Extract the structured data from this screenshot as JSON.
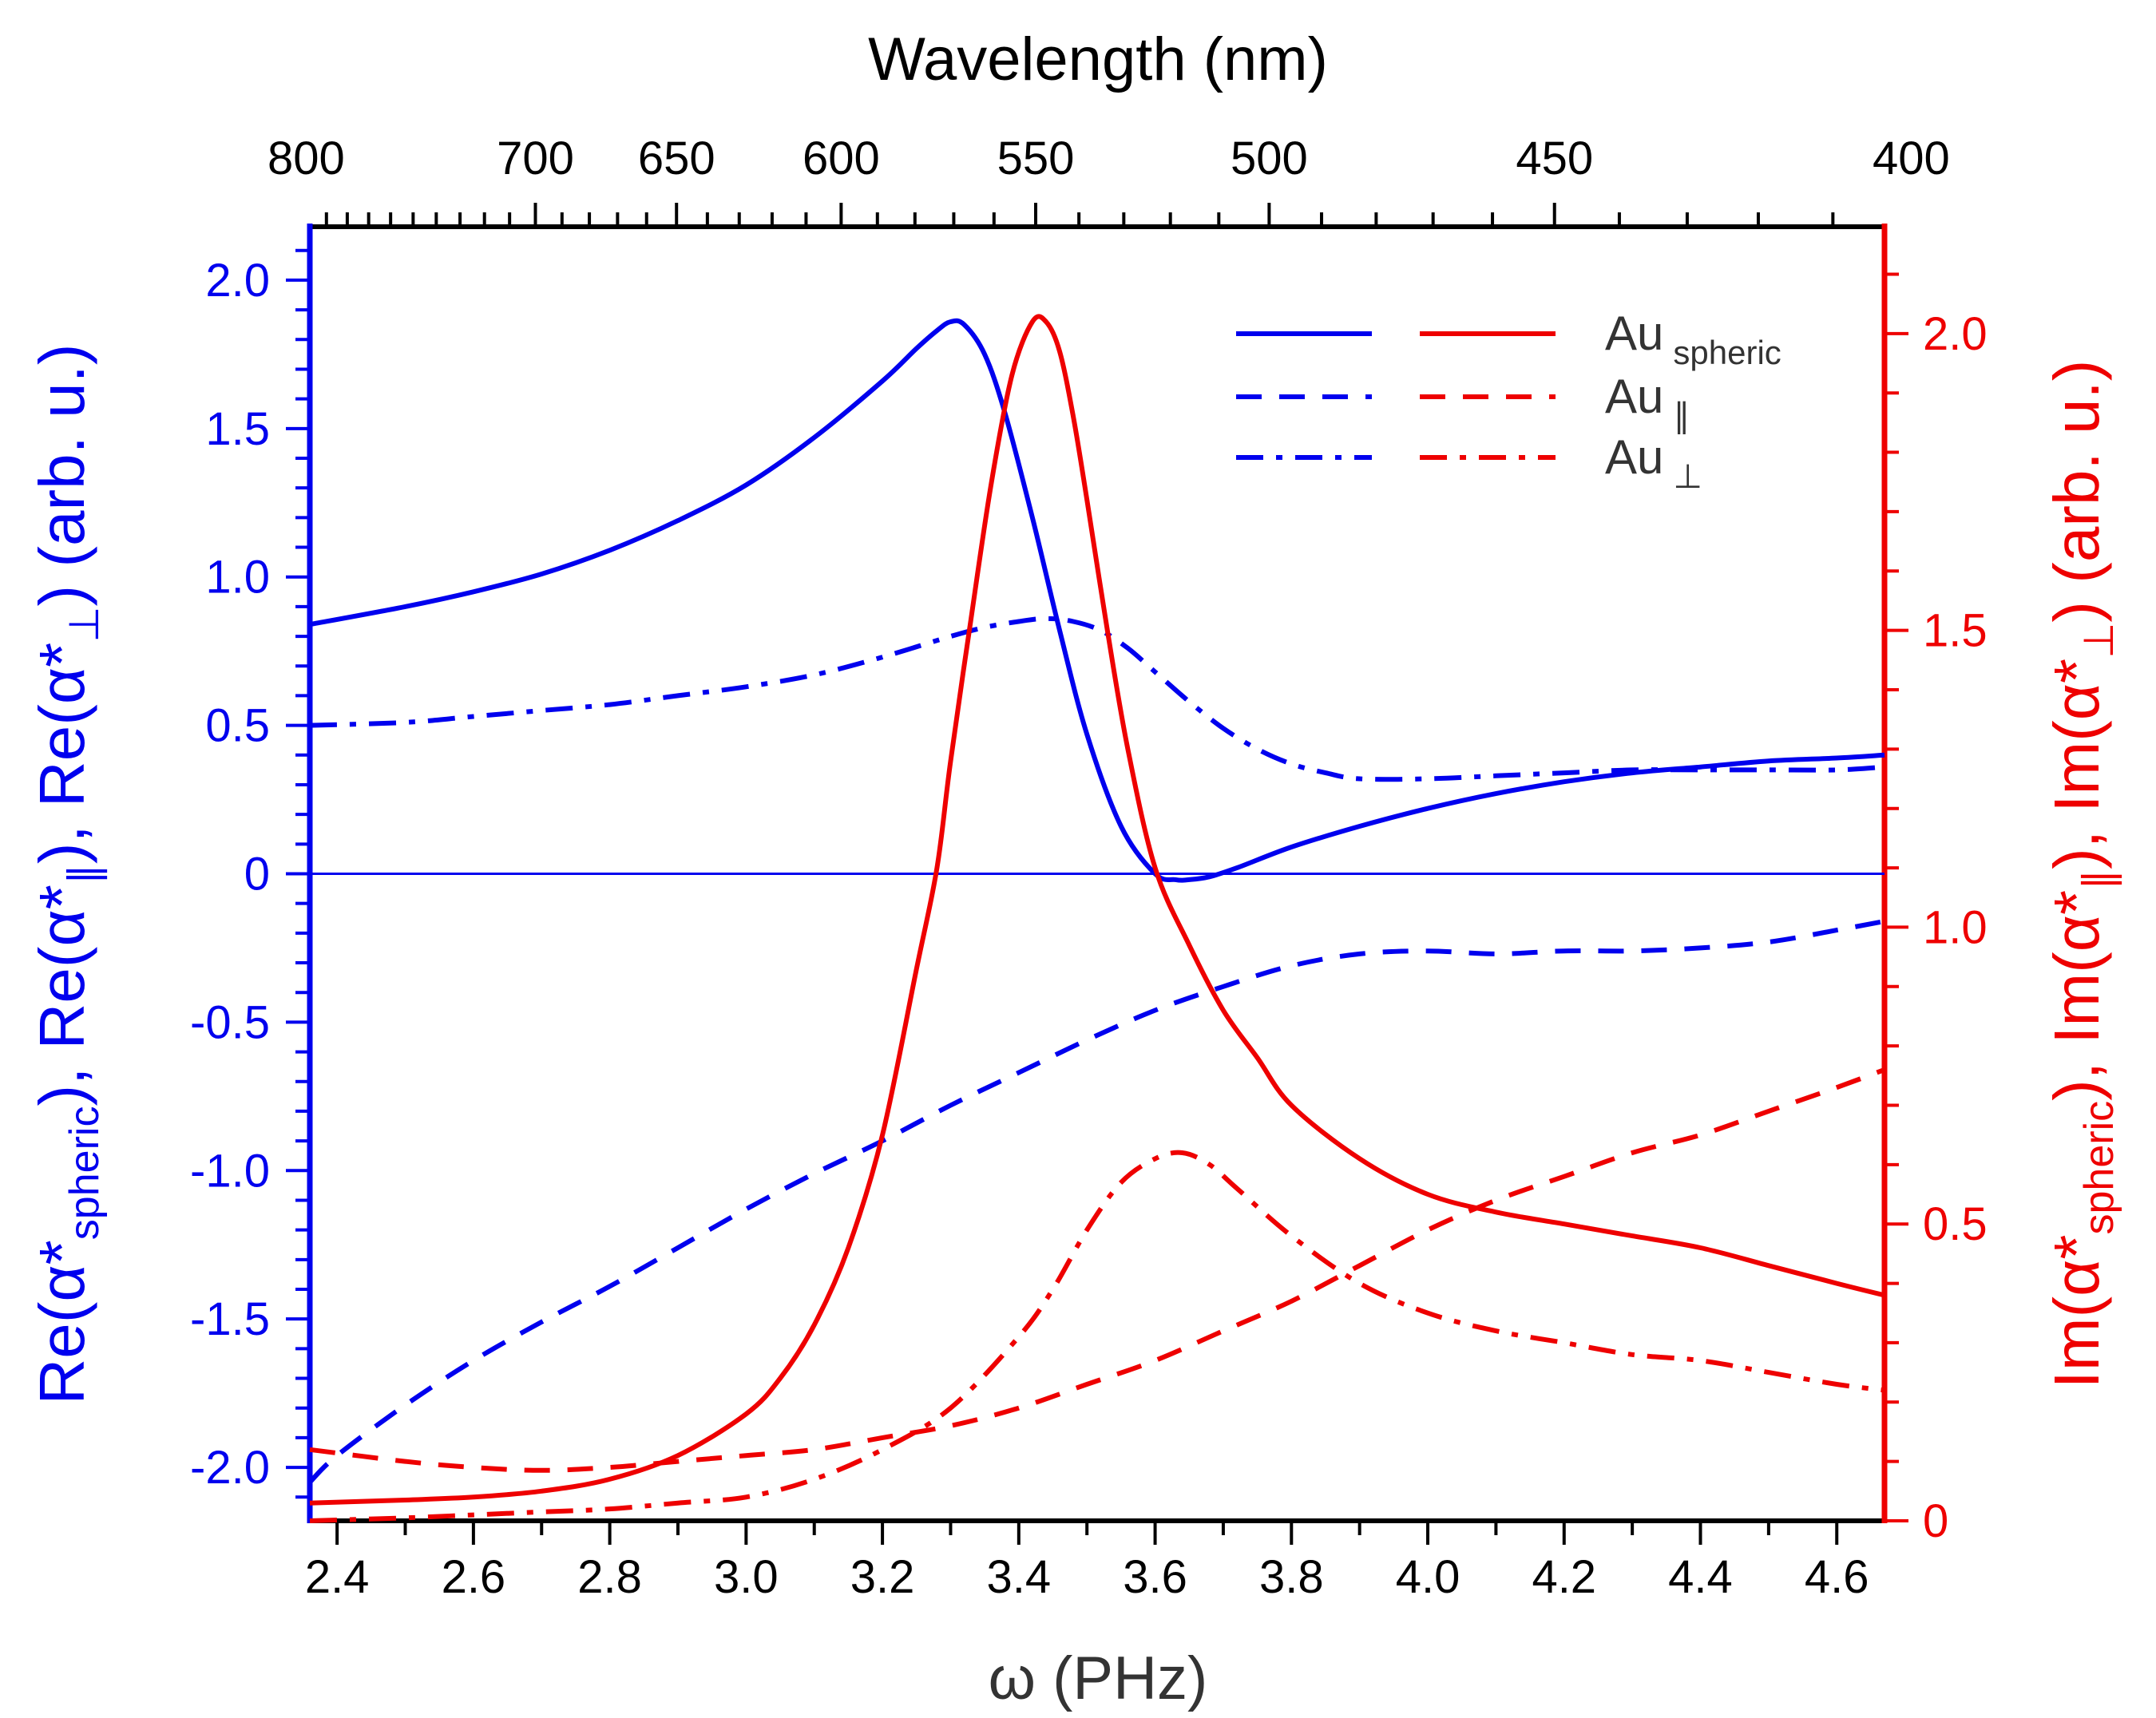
{
  "chart_data": {
    "type": "line",
    "xlabel": "ω (PHz)",
    "xlim": [
      2.36,
      4.67
    ],
    "x_ticks": [
      "2.4",
      "2.6",
      "2.8",
      "3.0",
      "3.2",
      "3.4",
      "3.6",
      "3.8",
      "4.0",
      "4.2",
      "4.4",
      "4.6"
    ],
    "top_xlabel": "Wavelength (nm)",
    "top_ticks": [
      "800",
      "700",
      "650",
      "600",
      "550",
      "500",
      "450",
      "400"
    ],
    "left_ylabel": {
      "main": "Re(α*",
      "sub1": "spheric",
      "mid1": "), Re(α*",
      "sub2": "∥",
      "mid2": "), Re(α*",
      "sub3": "⊥",
      "end": ") (arb. u.)"
    },
    "left_ylim": [
      -2.18,
      2.18
    ],
    "left_ticks": [
      "2.0",
      "1.5",
      "1.0",
      "0.5",
      "0",
      "-0.5",
      "-1.0",
      "-1.5",
      "-2.0"
    ],
    "right_ylabel": {
      "main": "Im(α*",
      "sub1": "spheric",
      "mid1": "), Im(α*",
      "sub2": "∥",
      "mid2": "), Im(α*",
      "sub3": "⊥",
      "end": ") (arb. u.)"
    },
    "right_ylim": [
      0,
      2.18
    ],
    "right_ticks": [
      "2.0",
      "1.5",
      "1.0",
      "0.5",
      "0"
    ],
    "colors": {
      "left": "#0000ee",
      "right": "#ee0000"
    },
    "legend": {
      "placement": "top-right",
      "entries": [
        {
          "label": "Au",
          "sub": "spheric",
          "style": "solid"
        },
        {
          "label": "Au",
          "sub": "∥",
          "style": "dashed"
        },
        {
          "label": "Au",
          "sub": "⊥",
          "style": "dashdot"
        }
      ]
    },
    "series": [
      {
        "name": "Re(α*spheric)",
        "axis": "left",
        "color": "#0000ee",
        "style": "solid",
        "x": [
          2.36,
          2.5,
          2.6,
          2.7,
          2.8,
          2.9,
          3.0,
          3.1,
          3.2,
          3.25,
          3.28,
          3.3,
          3.32,
          3.35,
          3.38,
          3.42,
          3.46,
          3.5,
          3.55,
          3.6,
          3.63,
          3.65,
          3.68,
          3.72,
          3.8,
          3.9,
          4.0,
          4.1,
          4.2,
          4.3,
          4.4,
          4.5,
          4.6,
          4.67
        ],
        "y": [
          0.84,
          0.9,
          0.95,
          1.01,
          1.09,
          1.19,
          1.31,
          1.47,
          1.66,
          1.77,
          1.83,
          1.86,
          1.85,
          1.75,
          1.55,
          1.2,
          0.82,
          0.47,
          0.16,
          0.0,
          -0.02,
          -0.02,
          -0.01,
          0.02,
          0.09,
          0.16,
          0.22,
          0.27,
          0.31,
          0.34,
          0.36,
          0.38,
          0.39,
          0.4
        ]
      },
      {
        "name": "Re(α*∥)",
        "axis": "left",
        "color": "#0000ee",
        "style": "dashed",
        "x": [
          2.36,
          2.4,
          2.5,
          2.6,
          2.7,
          2.8,
          2.9,
          3.0,
          3.1,
          3.2,
          3.3,
          3.4,
          3.5,
          3.6,
          3.7,
          3.8,
          3.9,
          4.0,
          4.1,
          4.2,
          4.3,
          4.4,
          4.5,
          4.6,
          4.67
        ],
        "y": [
          -2.05,
          -1.96,
          -1.79,
          -1.64,
          -1.51,
          -1.39,
          -1.26,
          -1.13,
          -1.01,
          -0.9,
          -0.78,
          -0.67,
          -0.56,
          -0.46,
          -0.38,
          -0.31,
          -0.27,
          -0.26,
          -0.27,
          -0.26,
          -0.26,
          -0.25,
          -0.23,
          -0.19,
          -0.16
        ]
      },
      {
        "name": "Re(α*⊥)",
        "axis": "left",
        "color": "#0000ee",
        "style": "dashdot",
        "x": [
          2.36,
          2.5,
          2.6,
          2.7,
          2.8,
          2.9,
          3.0,
          3.1,
          3.2,
          3.3,
          3.35,
          3.4,
          3.44,
          3.48,
          3.52,
          3.56,
          3.6,
          3.65,
          3.7,
          3.75,
          3.8,
          3.85,
          3.9,
          4.0,
          4.1,
          4.2,
          4.3,
          4.4,
          4.5,
          4.6,
          4.67
        ],
        "y": [
          0.5,
          0.51,
          0.53,
          0.55,
          0.57,
          0.6,
          0.63,
          0.67,
          0.73,
          0.8,
          0.83,
          0.85,
          0.86,
          0.85,
          0.82,
          0.76,
          0.68,
          0.58,
          0.49,
          0.42,
          0.37,
          0.34,
          0.32,
          0.32,
          0.33,
          0.34,
          0.35,
          0.35,
          0.35,
          0.35,
          0.36
        ]
      },
      {
        "name": "Im(α*spheric)",
        "axis": "right",
        "color": "#ee0000",
        "style": "solid",
        "x": [
          2.36,
          2.5,
          2.6,
          2.7,
          2.8,
          2.9,
          3.0,
          3.05,
          3.1,
          3.15,
          3.2,
          3.25,
          3.28,
          3.3,
          3.33,
          3.36,
          3.39,
          3.42,
          3.44,
          3.46,
          3.48,
          3.5,
          3.53,
          3.56,
          3.6,
          3.65,
          3.7,
          3.75,
          3.8,
          3.9,
          4.0,
          4.1,
          4.2,
          4.3,
          4.4,
          4.5,
          4.6,
          4.67
        ],
        "y": [
          0.03,
          0.035,
          0.04,
          0.05,
          0.07,
          0.11,
          0.18,
          0.24,
          0.33,
          0.46,
          0.65,
          0.93,
          1.1,
          1.28,
          1.52,
          1.75,
          1.93,
          2.02,
          2.02,
          1.97,
          1.86,
          1.72,
          1.5,
          1.3,
          1.1,
          0.97,
          0.86,
          0.78,
          0.7,
          0.61,
          0.55,
          0.52,
          0.5,
          0.48,
          0.46,
          0.43,
          0.4,
          0.38
        ]
      },
      {
        "name": "Im(α*∥)",
        "axis": "right",
        "color": "#ee0000",
        "style": "dashed",
        "x": [
          2.36,
          2.5,
          2.6,
          2.7,
          2.8,
          2.9,
          3.0,
          3.1,
          3.2,
          3.3,
          3.4,
          3.5,
          3.6,
          3.7,
          3.8,
          3.9,
          4.0,
          4.1,
          4.2,
          4.3,
          4.4,
          4.5,
          4.6,
          4.67
        ],
        "y": [
          0.12,
          0.1,
          0.09,
          0.085,
          0.09,
          0.1,
          0.11,
          0.12,
          0.14,
          0.16,
          0.19,
          0.23,
          0.27,
          0.32,
          0.37,
          0.43,
          0.49,
          0.54,
          0.58,
          0.62,
          0.65,
          0.69,
          0.73,
          0.76
        ]
      },
      {
        "name": "Im(α*⊥)",
        "axis": "right",
        "color": "#ee0000",
        "style": "dashdot",
        "x": [
          2.36,
          2.5,
          2.6,
          2.7,
          2.8,
          2.9,
          3.0,
          3.1,
          3.2,
          3.3,
          3.4,
          3.45,
          3.5,
          3.55,
          3.6,
          3.64,
          3.68,
          3.72,
          3.8,
          3.9,
          4.0,
          4.1,
          4.2,
          4.3,
          4.4,
          4.5,
          4.6,
          4.67
        ],
        "y": [
          0.0,
          0.005,
          0.01,
          0.015,
          0.02,
          0.03,
          0.04,
          0.07,
          0.12,
          0.19,
          0.31,
          0.39,
          0.49,
          0.57,
          0.61,
          0.62,
          0.6,
          0.56,
          0.48,
          0.4,
          0.35,
          0.32,
          0.3,
          0.28,
          0.27,
          0.25,
          0.23,
          0.22
        ]
      }
    ]
  }
}
